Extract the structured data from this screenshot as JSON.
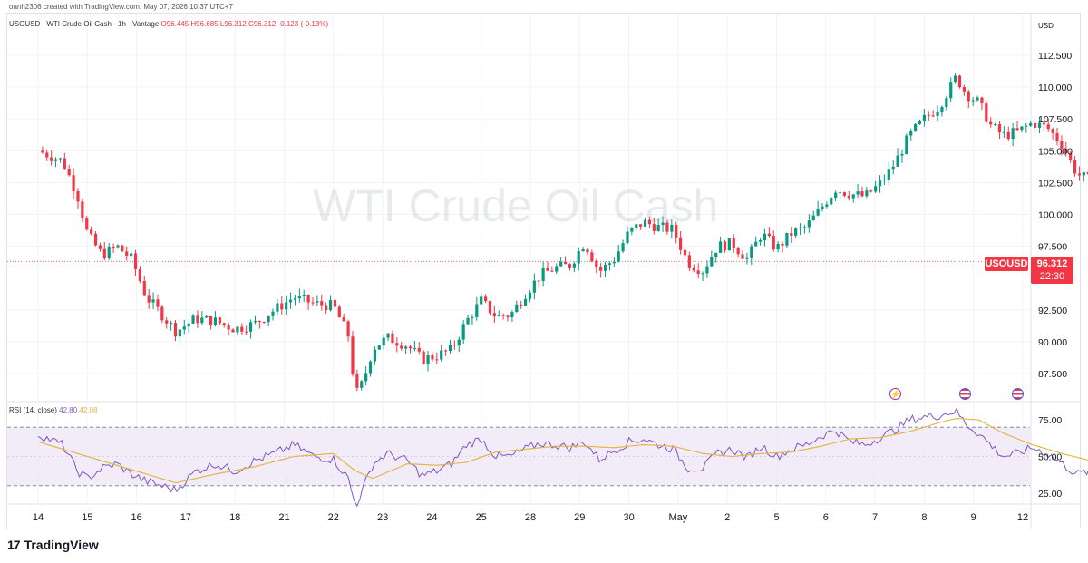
{
  "header": {
    "created_text": "oanh2306 created with TradingView.com, May 07, 2026 10:37 UTC+7"
  },
  "legend": {
    "symbol_text": "USOUSD · WTI Crude Oil Cash · 1h · Vantage",
    "open": "O96.445",
    "high": "H96.685",
    "low": "L96.312",
    "close": "C96.312",
    "change": "-0.123 (-0.13%)"
  },
  "watermark": "WTI Crude Oil Cash",
  "currency": "USD",
  "price_tag": {
    "symbol": "USOUSD",
    "price": "96.312",
    "countdown": "22:30"
  },
  "rsi_legend": {
    "name": "RSI (14, close)",
    "rsi_value": "42.80",
    "ma_value": "42.08"
  },
  "brand": {
    "logo_text": "17",
    "name": "TradingView"
  },
  "colors": {
    "up": "#089981",
    "down": "#f23645",
    "rsi": "#7e57c2",
    "rsi_ma": "#e3b23c",
    "rsi_band": "#ede7f6"
  },
  "chart_data": [
    {
      "type": "candlestick",
      "title": "USOUSD · WTI Crude Oil Cash · 1h · Vantage",
      "ylabel": "USD",
      "ylim": [
        85.5,
        114
      ],
      "y_ticks": [
        "112.500",
        "110.000",
        "107.500",
        "105.000",
        "102.500",
        "100.000",
        "97.500",
        "92.500",
        "90.000",
        "87.500"
      ],
      "x_ticks": [
        "14",
        "15",
        "16",
        "17",
        "18",
        "21",
        "22",
        "23",
        "24",
        "25",
        "28",
        "29",
        "30",
        "May",
        "2",
        "5",
        "6",
        "7",
        "8",
        "9",
        "12"
      ],
      "current_price": 96.312,
      "close_path": [
        [
          0.0,
          105.0
        ],
        [
          0.5,
          104.2
        ],
        [
          0.8,
          101.5
        ],
        [
          1.0,
          98.5
        ],
        [
          1.3,
          96.8
        ],
        [
          1.6,
          97.5
        ],
        [
          1.9,
          96.5
        ],
        [
          2.2,
          93.5
        ],
        [
          2.5,
          92.2
        ],
        [
          2.8,
          90.8
        ],
        [
          3.2,
          91.8
        ],
        [
          3.6,
          91.6
        ],
        [
          4.0,
          91.0
        ],
        [
          4.4,
          91.4
        ],
        [
          4.8,
          92.5
        ],
        [
          5.2,
          93.5
        ],
        [
          5.6,
          93.0
        ],
        [
          6.0,
          92.8
        ],
        [
          6.3,
          90.5
        ],
        [
          6.45,
          85.8
        ],
        [
          6.6,
          86.8
        ],
        [
          6.8,
          89.5
        ],
        [
          7.1,
          90.3
        ],
        [
          7.5,
          89.7
        ],
        [
          7.8,
          88.6
        ],
        [
          8.1,
          88.9
        ],
        [
          8.4,
          89.4
        ],
        [
          8.7,
          91.6
        ],
        [
          9.0,
          93.2
        ],
        [
          9.3,
          92.0
        ],
        [
          9.6,
          92.1
        ],
        [
          9.9,
          93.8
        ],
        [
          10.2,
          95.2
        ],
        [
          10.5,
          95.8
        ],
        [
          10.8,
          96.0
        ],
        [
          11.1,
          97.8
        ],
        [
          11.4,
          95.5
        ],
        [
          11.7,
          96.5
        ],
        [
          12.0,
          98.6
        ],
        [
          12.3,
          99.4
        ],
        [
          12.6,
          99.0
        ],
        [
          12.9,
          98.8
        ],
        [
          13.2,
          96.2
        ],
        [
          13.5,
          95.6
        ],
        [
          13.8,
          97.5
        ],
        [
          14.1,
          97.7
        ],
        [
          14.4,
          96.5
        ],
        [
          14.7,
          98.5
        ],
        [
          15.0,
          97.3
        ],
        [
          15.3,
          98.5
        ],
        [
          15.6,
          99.0
        ],
        [
          15.9,
          100.5
        ],
        [
          16.2,
          102.0
        ],
        [
          16.5,
          101.6
        ],
        [
          16.8,
          101.4
        ],
        [
          17.1,
          102.4
        ],
        [
          17.4,
          104.0
        ],
        [
          17.7,
          106.2
        ],
        [
          18.0,
          107.5
        ],
        [
          18.3,
          108.5
        ],
        [
          18.5,
          109.8
        ],
        [
          18.65,
          110.8
        ],
        [
          18.85,
          109.5
        ],
        [
          19.1,
          108.8
        ],
        [
          19.35,
          107.0
        ],
        [
          19.6,
          106.2
        ],
        [
          19.9,
          106.5
        ],
        [
          20.2,
          107.2
        ],
        [
          20.5,
          106.8
        ],
        [
          20.8,
          105.5
        ],
        [
          21.1,
          103.2
        ],
        [
          21.4,
          102.6
        ],
        [
          21.7,
          102.0
        ],
        [
          22.0,
          102.8
        ],
        [
          22.3,
          104.0
        ],
        [
          22.6,
          105.3
        ],
        [
          22.9,
          107.2
        ],
        [
          23.2,
          106.3
        ],
        [
          23.5,
          105.9
        ],
        [
          23.8,
          105.6
        ],
        [
          24.1,
          104.9
        ],
        [
          24.4,
          104.2
        ],
        [
          24.7,
          103.2
        ],
        [
          25.0,
          102.9
        ],
        [
          25.3,
          102.5
        ],
        [
          25.6,
          101.8
        ],
        [
          25.8,
          99.2
        ],
        [
          26.0,
          96.5
        ],
        [
          26.15,
          95.8
        ],
        [
          26.25,
          90.4
        ],
        [
          26.4,
          93.5
        ],
        [
          26.6,
          96.1
        ],
        [
          26.9,
          96.5
        ],
        [
          27.2,
          96.7
        ],
        [
          27.4,
          96.312
        ]
      ]
    },
    {
      "type": "line",
      "title": "RSI (14, close)",
      "ylim": [
        20,
        80
      ],
      "y_ticks": [
        75,
        50,
        25
      ],
      "band": [
        30,
        70
      ],
      "series": [
        {
          "name": "RSI",
          "points": [
            [
              0.0,
              65
            ],
            [
              0.5,
              58
            ],
            [
              0.8,
              40
            ],
            [
              1.0,
              35
            ],
            [
              1.3,
              42
            ],
            [
              1.6,
              45
            ],
            [
              1.9,
              38
            ],
            [
              2.2,
              33
            ],
            [
              2.5,
              30
            ],
            [
              2.8,
              27
            ],
            [
              3.2,
              40
            ],
            [
              3.6,
              45
            ],
            [
              4.0,
              40
            ],
            [
              4.4,
              47
            ],
            [
              4.8,
              52
            ],
            [
              5.2,
              58
            ],
            [
              5.6,
              50
            ],
            [
              6.0,
              48
            ],
            [
              6.3,
              35
            ],
            [
              6.45,
              16
            ],
            [
              6.6,
              28
            ],
            [
              6.8,
              45
            ],
            [
              7.1,
              52
            ],
            [
              7.5,
              47
            ],
            [
              7.8,
              37
            ],
            [
              8.1,
              40
            ],
            [
              8.4,
              45
            ],
            [
              8.7,
              58
            ],
            [
              9.0,
              62
            ],
            [
              9.3,
              50
            ],
            [
              9.6,
              50
            ],
            [
              9.9,
              55
            ],
            [
              10.2,
              59
            ],
            [
              10.5,
              58
            ],
            [
              10.8,
              56
            ],
            [
              11.1,
              60
            ],
            [
              11.4,
              48
            ],
            [
              11.7,
              54
            ],
            [
              12.0,
              60
            ],
            [
              12.3,
              62
            ],
            [
              12.6,
              58
            ],
            [
              12.9,
              55
            ],
            [
              13.2,
              42
            ],
            [
              13.5,
              42
            ],
            [
              13.8,
              52
            ],
            [
              14.1,
              55
            ],
            [
              14.4,
              49
            ],
            [
              14.7,
              57
            ],
            [
              15.0,
              50
            ],
            [
              15.3,
              55
            ],
            [
              15.6,
              58
            ],
            [
              15.9,
              64
            ],
            [
              16.2,
              68
            ],
            [
              16.5,
              60
            ],
            [
              16.8,
              58
            ],
            [
              17.1,
              63
            ],
            [
              17.4,
              68
            ],
            [
              17.7,
              75
            ],
            [
              18.0,
              77
            ],
            [
              18.3,
              78
            ],
            [
              18.5,
              80
            ],
            [
              18.65,
              81
            ],
            [
              18.85,
              72
            ],
            [
              19.1,
              66
            ],
            [
              19.35,
              58
            ],
            [
              19.6,
              50
            ],
            [
              19.9,
              52
            ],
            [
              20.2,
              56
            ],
            [
              20.5,
              52
            ],
            [
              20.8,
              45
            ],
            [
              21.1,
              38
            ],
            [
              21.4,
              40
            ],
            [
              21.7,
              38
            ],
            [
              22.0,
              44
            ],
            [
              22.3,
              52
            ],
            [
              22.6,
              58
            ],
            [
              22.9,
              62
            ],
            [
              23.2,
              52
            ],
            [
              23.5,
              50
            ],
            [
              23.8,
              49
            ],
            [
              24.1,
              46
            ],
            [
              24.4,
              43
            ],
            [
              24.7,
              40
            ],
            [
              25.0,
              41
            ],
            [
              25.3,
              38
            ],
            [
              25.6,
              37
            ],
            [
              25.8,
              30
            ],
            [
              26.0,
              25
            ],
            [
              26.15,
              27
            ],
            [
              26.25,
              17
            ],
            [
              26.4,
              35
            ],
            [
              26.6,
              42
            ],
            [
              26.9,
              44
            ],
            [
              27.2,
              45
            ],
            [
              27.4,
              42.8
            ]
          ]
        },
        {
          "name": "RSI MA",
          "points": [
            [
              0.0,
              60
            ],
            [
              1.0,
              50
            ],
            [
              2.0,
              40
            ],
            [
              2.8,
              32
            ],
            [
              3.6,
              38
            ],
            [
              4.4,
              43
            ],
            [
              5.2,
              50
            ],
            [
              6.0,
              52
            ],
            [
              6.45,
              40
            ],
            [
              6.8,
              35
            ],
            [
              7.5,
              45
            ],
            [
              8.1,
              44
            ],
            [
              8.7,
              46
            ],
            [
              9.3,
              53
            ],
            [
              9.9,
              55
            ],
            [
              10.5,
              57
            ],
            [
              11.1,
              57
            ],
            [
              11.7,
              56
            ],
            [
              12.3,
              58
            ],
            [
              12.9,
              57
            ],
            [
              13.5,
              52
            ],
            [
              14.1,
              50
            ],
            [
              14.7,
              52
            ],
            [
              15.3,
              53
            ],
            [
              15.9,
              57
            ],
            [
              16.5,
              62
            ],
            [
              17.1,
              63
            ],
            [
              17.7,
              67
            ],
            [
              18.3,
              73
            ],
            [
              18.65,
              76
            ],
            [
              19.1,
              75
            ],
            [
              19.6,
              66
            ],
            [
              20.2,
              58
            ],
            [
              20.8,
              52
            ],
            [
              21.4,
              47
            ],
            [
              22.0,
              43
            ],
            [
              22.6,
              48
            ],
            [
              23.2,
              53
            ],
            [
              23.8,
              52
            ],
            [
              24.4,
              48
            ],
            [
              25.0,
              44
            ],
            [
              25.6,
              40
            ],
            [
              26.0,
              36
            ],
            [
              26.25,
              32
            ],
            [
              26.6,
              33
            ],
            [
              27.0,
              37
            ],
            [
              27.4,
              42.08
            ]
          ]
        }
      ]
    }
  ]
}
